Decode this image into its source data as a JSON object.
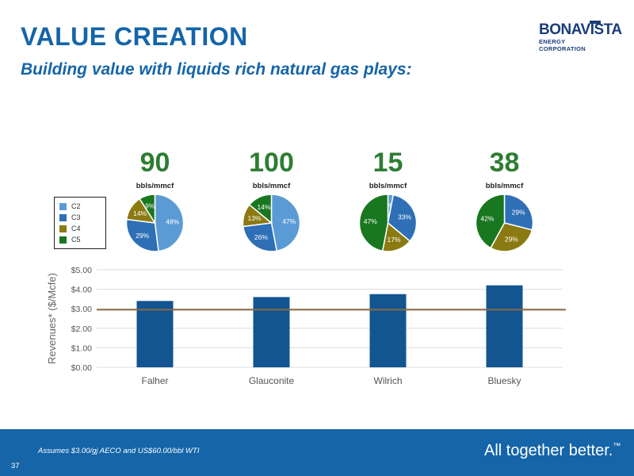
{
  "header": {
    "title": "VALUE CREATION",
    "subtitle": "Building value with liquids rich natural gas plays:"
  },
  "logo": {
    "name": "BONAVISTA",
    "sub": "ENERGY CORPORATION"
  },
  "footer": {
    "note": "Assumes $3.00/gj AECO and US$60.00/bbl WTI",
    "page": "37",
    "tagline": "All together better.",
    "tm": "™"
  },
  "colors": {
    "primary_blue": "#1565a8",
    "bar": "#125591",
    "line": "#8b6a45",
    "big_number": "#2e7d32",
    "C2": "#5b9bd5",
    "C3": "#2e6fb6",
    "C4": "#8b7a12",
    "C5": "#18771f"
  },
  "legend": [
    "C2",
    "C3",
    "C4",
    "C5"
  ],
  "chart_data": [
    {
      "type": "bar",
      "categories": [
        "Falher",
        "Glauconite",
        "Wilrich",
        "Bluesky"
      ],
      "values": [
        3.4,
        3.6,
        3.75,
        4.2
      ],
      "ylabel": "Revenues* ($/Mcfe)",
      "ylim": [
        0,
        5
      ],
      "yticks": [
        "$0.00",
        "$1.00",
        "$2.00",
        "$3.00",
        "$4.00",
        "$5.00"
      ],
      "reference_line": 2.95,
      "grid": true
    },
    {
      "type": "pie",
      "category": "Falher",
      "headline": "90",
      "unit": "bbls/mmcf",
      "labels": [
        "C2",
        "C3",
        "C4",
        "C5"
      ],
      "values": [
        48,
        29,
        14,
        9
      ],
      "value_labels": [
        "48%",
        "29%",
        "14%",
        "9%"
      ]
    },
    {
      "type": "pie",
      "category": "Glauconite",
      "headline": "100",
      "unit": "bbls/mmcf",
      "labels": [
        "C2",
        "C3",
        "C4",
        "C5"
      ],
      "values": [
        47,
        26,
        13,
        14
      ],
      "value_labels": [
        "47%",
        "26%",
        "13%",
        "14%"
      ]
    },
    {
      "type": "pie",
      "category": "Wilrich",
      "headline": "15",
      "unit": "bbls/mmcf",
      "labels": [
        "C2",
        "C3",
        "C4",
        "C5"
      ],
      "values": [
        3,
        33,
        17,
        47
      ],
      "value_labels": [
        "3%",
        "33%",
        "17%",
        "47%"
      ]
    },
    {
      "type": "pie",
      "category": "Bluesky",
      "headline": "38",
      "unit": "bbls/mmcf",
      "labels": [
        "C3",
        "C4",
        "C5"
      ],
      "values": [
        29,
        29,
        42
      ],
      "value_labels": [
        "29%",
        "29%",
        "42%"
      ]
    }
  ]
}
